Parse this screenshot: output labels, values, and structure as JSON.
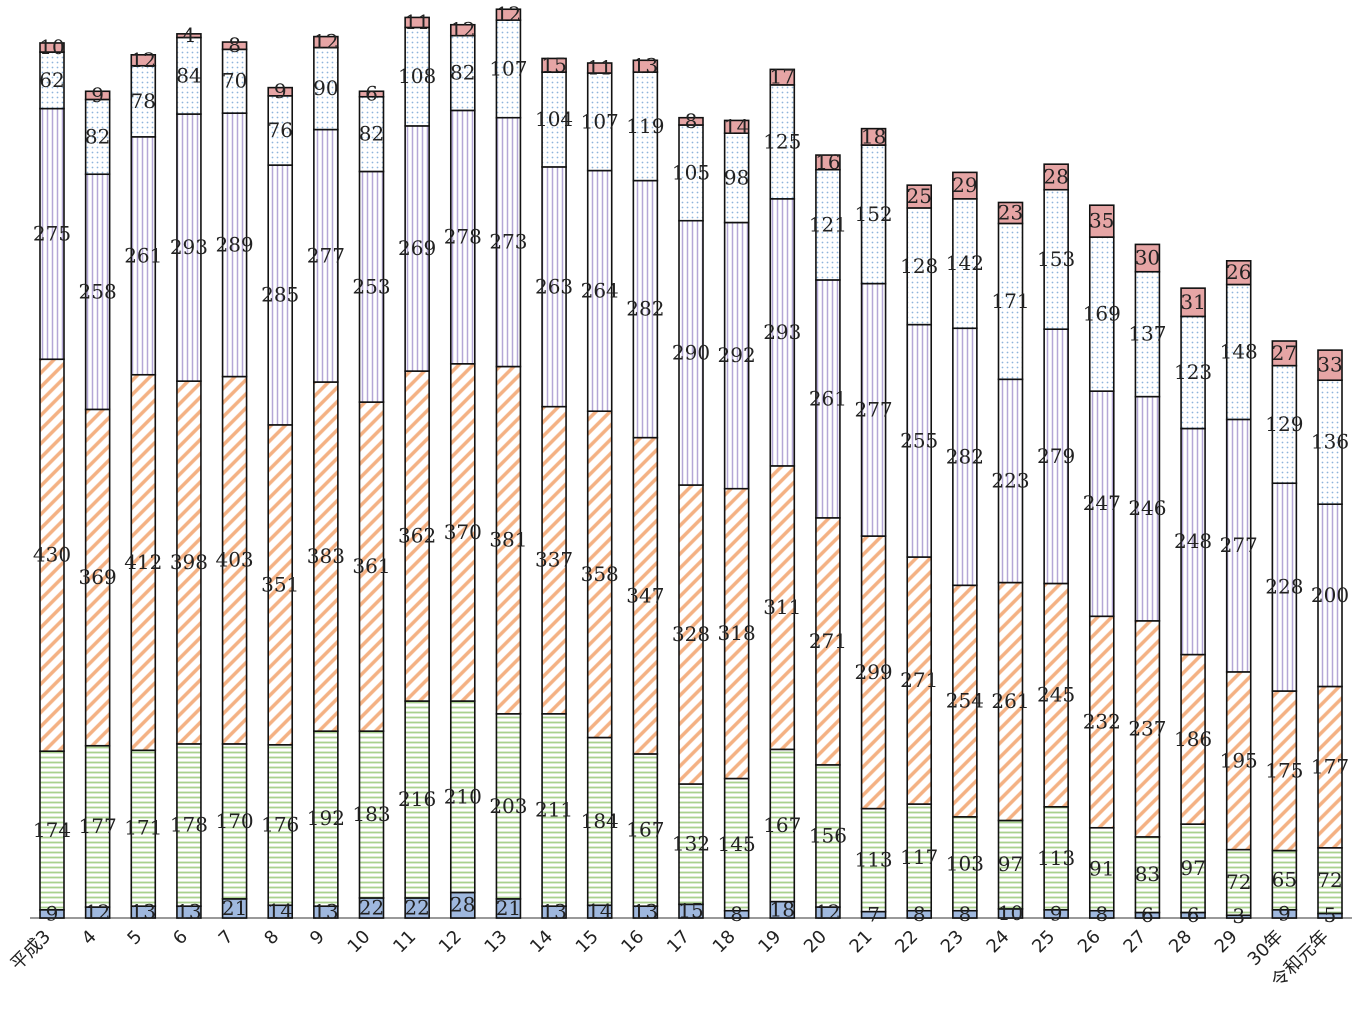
{
  "chart_data": {
    "type": "stacked_bar",
    "categories": [
      "平成3",
      "4",
      "5",
      "6",
      "7",
      "8",
      "9",
      "10",
      "11",
      "12",
      "13",
      "14",
      "15",
      "16",
      "17",
      "18",
      "19",
      "20",
      "21",
      "22",
      "23",
      "24",
      "25",
      "26",
      "27",
      "28",
      "29",
      "30年",
      "令和元年"
    ],
    "ylim": [
      0,
      1000
    ],
    "series": [
      {
        "color": "#9fb8de",
        "pattern": "solid",
        "values": [
          9,
          12,
          13,
          13,
          21,
          14,
          13,
          22,
          22,
          28,
          21,
          13,
          14,
          13,
          15,
          8,
          18,
          12,
          7,
          8,
          8,
          10,
          9,
          8,
          6,
          6,
          3,
          9,
          5
        ]
      },
      {
        "color": "#a9d18e",
        "pattern": "hlines",
        "values": [
          174,
          177,
          171,
          178,
          170,
          176,
          192,
          183,
          216,
          210,
          203,
          211,
          184,
          167,
          132,
          145,
          167,
          156,
          113,
          117,
          103,
          97,
          113,
          91,
          83,
          97,
          72,
          65,
          72
        ]
      },
      {
        "color": "#f4b183",
        "pattern": "diagonal",
        "values": [
          430,
          369,
          412,
          398,
          403,
          351,
          383,
          361,
          362,
          370,
          381,
          337,
          358,
          347,
          328,
          318,
          311,
          271,
          299,
          271,
          254,
          261,
          245,
          232,
          237,
          186,
          195,
          175,
          177
        ]
      },
      {
        "color": "#b4a7d6",
        "pattern": "vlines",
        "values": [
          275,
          258,
          261,
          293,
          289,
          285,
          277,
          253,
          269,
          278,
          273,
          263,
          264,
          282,
          290,
          292,
          293,
          261,
          277,
          255,
          282,
          223,
          279,
          247,
          246,
          248,
          277,
          228,
          200
        ]
      },
      {
        "color": "#8fb4dc",
        "pattern": "dots",
        "values": [
          62,
          82,
          78,
          84,
          70,
          76,
          90,
          82,
          108,
          82,
          107,
          104,
          107,
          119,
          105,
          98,
          125,
          121,
          152,
          128,
          142,
          171,
          153,
          169,
          137,
          123,
          148,
          129,
          136
        ]
      },
      {
        "color": "#e6a5a5",
        "pattern": "solid",
        "values": [
          10,
          9,
          12,
          4,
          8,
          9,
          12,
          6,
          11,
          12,
          12,
          15,
          11,
          13,
          8,
          14,
          17,
          16,
          18,
          25,
          29,
          23,
          28,
          35,
          30,
          31,
          26,
          27,
          33
        ]
      }
    ]
  }
}
